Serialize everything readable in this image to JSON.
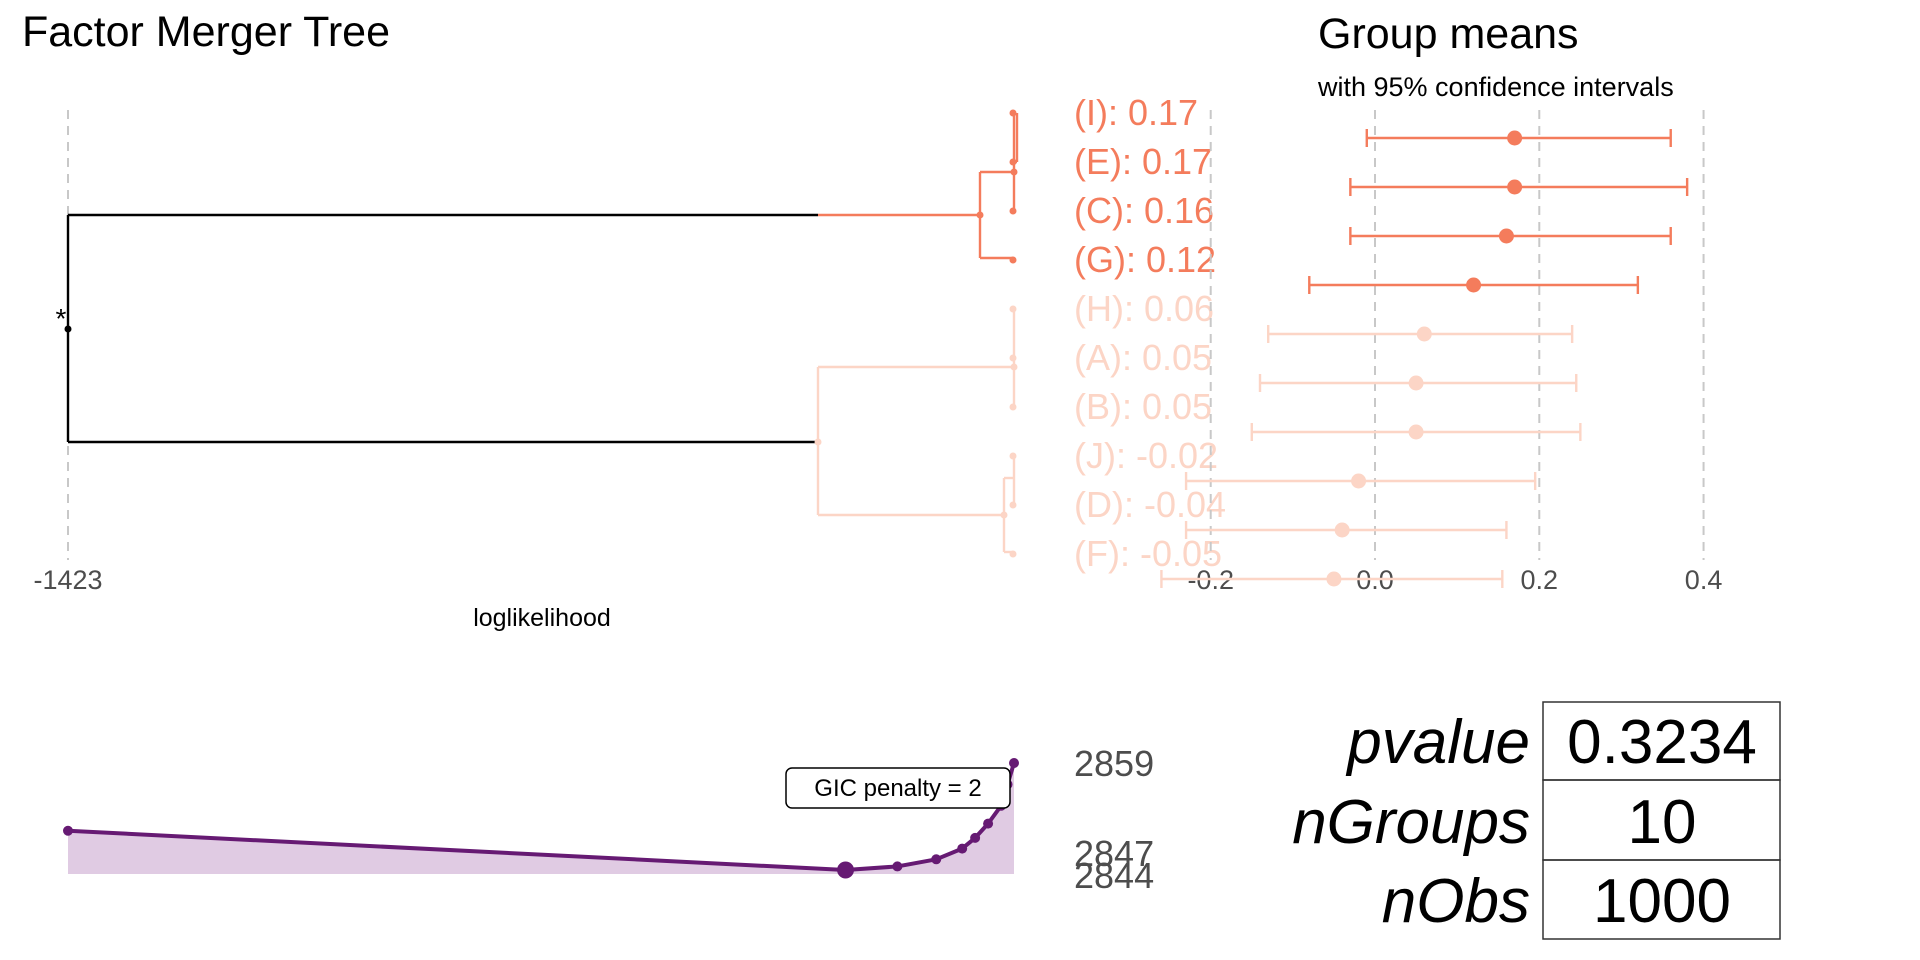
{
  "colors": {
    "cluster_high": "#f47c5c",
    "cluster_low": "#fcd5c6",
    "tree_root": "#000000",
    "gic_line": "#661a73",
    "gic_fill": "#e0cbe3",
    "grid": "#c8c8c8"
  },
  "header": {
    "tree_title": "Factor Merger Tree",
    "means_title": "Group means",
    "means_subtitle": "with 95% confidence intervals"
  },
  "tree": {
    "x_axis_label": "loglikelihood",
    "x_tick": "-1423",
    "root_marker": "*"
  },
  "stats_table": [
    {
      "key": "pvalue",
      "value": "0.3234"
    },
    {
      "key": "nGroups",
      "value": "10"
    },
    {
      "key": "nObs",
      "value": "1000"
    }
  ],
  "gic": {
    "penalty_label": "GIC penalty = 2",
    "labels": [
      "2859",
      "2847",
      "2844"
    ]
  },
  "chart_data": [
    {
      "type": "dendrogram",
      "title": "Factor Merger Tree",
      "xlabel": "loglikelihood",
      "x_ticks": [
        "-1423"
      ],
      "leaves": [
        {
          "label": "(I): 0.17",
          "group": "(I)",
          "mean": 0.17,
          "cluster": 1
        },
        {
          "label": "(E): 0.17",
          "group": "(E)",
          "mean": 0.17,
          "cluster": 1
        },
        {
          "label": "(C): 0.16",
          "group": "(C)",
          "mean": 0.16,
          "cluster": 1
        },
        {
          "label": "(G): 0.12",
          "group": "(G)",
          "mean": 0.12,
          "cluster": 1
        },
        {
          "label": "(H): 0.06",
          "group": "(H)",
          "mean": 0.06,
          "cluster": 2
        },
        {
          "label": "(A): 0.05",
          "group": "(A)",
          "mean": 0.05,
          "cluster": 2
        },
        {
          "label": "(B): 0.05",
          "group": "(B)",
          "mean": 0.05,
          "cluster": 2
        },
        {
          "label": "(J): -0.02",
          "group": "(J)",
          "mean": -0.02,
          "cluster": 2
        },
        {
          "label": "(D): -0.04",
          "group": "(D)",
          "mean": -0.04,
          "cluster": 2
        },
        {
          "label": "(F): -0.05",
          "group": "(F)",
          "mean": -0.05,
          "cluster": 2
        }
      ]
    },
    {
      "type": "scatter",
      "title": "Group means",
      "subtitle": "with 95% confidence intervals",
      "xlim": [
        -0.28,
        0.42
      ],
      "x_ticks": [
        -0.2,
        0.0,
        0.2,
        0.4
      ],
      "x_tick_labels": [
        "-0.2",
        "0.0",
        "0.2",
        "0.4"
      ],
      "grid": true,
      "points": [
        {
          "group": "(I)",
          "mean": 0.17,
          "lower": -0.01,
          "upper": 0.36,
          "cluster": 1
        },
        {
          "group": "(E)",
          "mean": 0.17,
          "lower": -0.03,
          "upper": 0.38,
          "cluster": 1
        },
        {
          "group": "(C)",
          "mean": 0.16,
          "lower": -0.03,
          "upper": 0.36,
          "cluster": 1
        },
        {
          "group": "(G)",
          "mean": 0.12,
          "lower": -0.08,
          "upper": 0.32,
          "cluster": 1
        },
        {
          "group": "(H)",
          "mean": 0.06,
          "lower": -0.13,
          "upper": 0.24,
          "cluster": 2
        },
        {
          "group": "(A)",
          "mean": 0.05,
          "lower": -0.14,
          "upper": 0.245,
          "cluster": 2
        },
        {
          "group": "(B)",
          "mean": 0.05,
          "lower": -0.15,
          "upper": 0.25,
          "cluster": 2
        },
        {
          "group": "(J)",
          "mean": -0.02,
          "lower": -0.23,
          "upper": 0.195,
          "cluster": 2
        },
        {
          "group": "(D)",
          "mean": -0.04,
          "lower": -0.23,
          "upper": 0.16,
          "cluster": 2
        },
        {
          "group": "(F)",
          "mean": -0.05,
          "lower": -0.26,
          "upper": 0.155,
          "cluster": 2
        }
      ]
    },
    {
      "type": "line",
      "series": [
        {
          "loglik": [
            -1423,
            -1417,
            -1416.6,
            -1416.3,
            -1416.1,
            -1416.0,
            -1415.9,
            -1415.8,
            -1415.75,
            -1415.7
          ],
          "gic": [
            2849.5,
            2844,
            2844.5,
            2845.5,
            2847,
            2848.5,
            2850.5,
            2853,
            2856,
            2859
          ]
        }
      ],
      "labels_shown": [
        2859,
        2847,
        2844
      ],
      "selected_point": {
        "loglik": -1417,
        "gic": 2844
      },
      "annotation": "GIC penalty = 2"
    }
  ]
}
